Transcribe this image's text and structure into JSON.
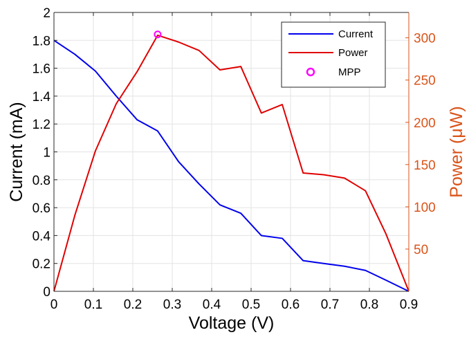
{
  "chart_data": {
    "type": "line",
    "xlabel": "Voltage (V)",
    "ylabel_left": "Current (mA)",
    "ylabel_right": "Power (μW)",
    "xlim": [
      0,
      0.9
    ],
    "ylim_left": [
      0,
      2
    ],
    "ylim_right": [
      0,
      330
    ],
    "x_ticks": [
      "0",
      "0.1",
      "0.2",
      "0.3",
      "0.4",
      "0.5",
      "0.6",
      "0.7",
      "0.8",
      "0.9"
    ],
    "y_left_ticks": [
      "0",
      "0.2",
      "0.4",
      "0.6",
      "0.8",
      "1",
      "1.2",
      "1.4",
      "1.6",
      "1.8",
      "2"
    ],
    "y_right_ticks": [
      "50",
      "100",
      "150",
      "200",
      "250",
      "300"
    ],
    "grid": true,
    "legend_position": "top-right",
    "colors": {
      "current": "#0000ee",
      "power": "#e00000",
      "mpp": "#ff00ff",
      "right_axis": "#d95319"
    },
    "series": [
      {
        "name": "Current",
        "axis": "left",
        "x": [
          0,
          0.053,
          0.105,
          0.158,
          0.211,
          0.263,
          0.316,
          0.368,
          0.421,
          0.474,
          0.526,
          0.579,
          0.632,
          0.684,
          0.737,
          0.79,
          0.842,
          0.9
        ],
        "y": [
          1.8,
          1.7,
          1.58,
          1.4,
          1.23,
          1.15,
          0.93,
          0.77,
          0.62,
          0.56,
          0.4,
          0.38,
          0.22,
          0.2,
          0.18,
          0.15,
          0.08,
          0
        ]
      },
      {
        "name": "Power",
        "axis": "right",
        "x": [
          0,
          0.053,
          0.105,
          0.158,
          0.211,
          0.263,
          0.316,
          0.368,
          0.421,
          0.474,
          0.526,
          0.579,
          0.632,
          0.684,
          0.737,
          0.79,
          0.842,
          0.9
        ],
        "y": [
          0,
          90,
          166,
          222,
          260,
          303,
          295,
          285,
          262,
          266,
          211,
          221,
          140,
          138,
          134,
          119,
          68,
          0
        ]
      },
      {
        "name": "MPP",
        "axis": "right",
        "marker": "circle",
        "x": [
          0.263
        ],
        "y": [
          304
        ]
      }
    ]
  }
}
